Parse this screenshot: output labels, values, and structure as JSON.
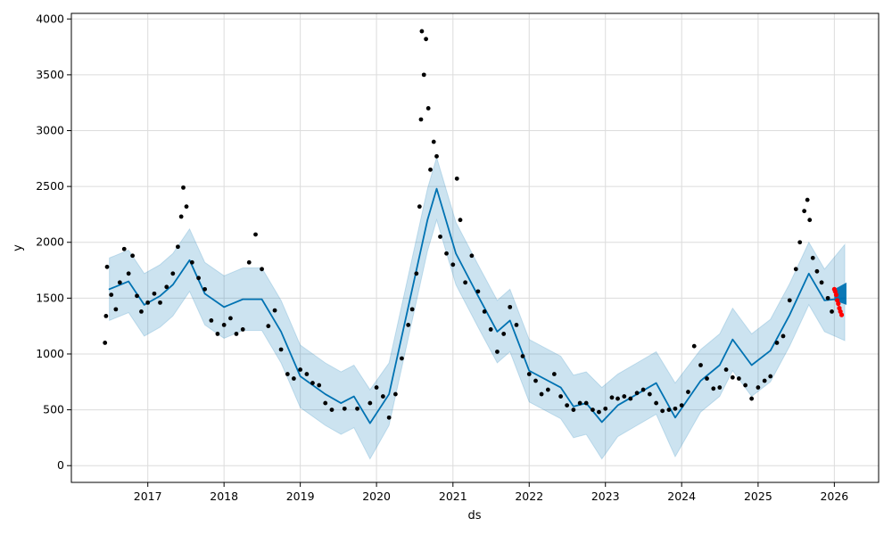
{
  "colors": {
    "background": "#ffffff",
    "actual_points": "#000000",
    "forecast_line": "#0072b2",
    "uncertainty_band": "#0072b2",
    "grid": "#dcdcdc",
    "recent_points": "#ff0000"
  },
  "chart_data": {
    "type": "line",
    "title": "",
    "xlabel": "ds",
    "ylabel": "y",
    "grid": true,
    "legend": "none",
    "x_axis": {
      "type": "date",
      "range": [
        "2016-01-01",
        "2026-08-01"
      ],
      "ticks": [
        "2017",
        "2018",
        "2019",
        "2020",
        "2021",
        "2022",
        "2023",
        "2024",
        "2025",
        "2026"
      ]
    },
    "y_axis": {
      "range": [
        -150,
        4050
      ],
      "ticks": [
        0,
        500,
        1000,
        1500,
        2000,
        2500,
        3000,
        3500,
        4000
      ]
    },
    "series": [
      {
        "name": "forecast",
        "kind": "line",
        "color": "#0072b2",
        "points": [
          [
            "2016-07-01",
            1580
          ],
          [
            "2016-10-01",
            1650
          ],
          [
            "2016-12-15",
            1440
          ],
          [
            "2017-03-01",
            1520
          ],
          [
            "2017-05-01",
            1620
          ],
          [
            "2017-07-20",
            1840
          ],
          [
            "2017-10-01",
            1540
          ],
          [
            "2018-01-01",
            1420
          ],
          [
            "2018-04-01",
            1490
          ],
          [
            "2018-07-01",
            1490
          ],
          [
            "2018-10-01",
            1200
          ],
          [
            "2019-01-01",
            800
          ],
          [
            "2019-05-01",
            640
          ],
          [
            "2019-07-15",
            560
          ],
          [
            "2019-09-15",
            620
          ],
          [
            "2019-12-01",
            380
          ],
          [
            "2020-03-01",
            640
          ],
          [
            "2020-06-01",
            1420
          ],
          [
            "2020-09-01",
            2200
          ],
          [
            "2020-10-15",
            2480
          ],
          [
            "2021-01-15",
            1900
          ],
          [
            "2021-05-01",
            1520
          ],
          [
            "2021-08-01",
            1200
          ],
          [
            "2021-10-01",
            1300
          ],
          [
            "2022-01-01",
            850
          ],
          [
            "2022-06-01",
            700
          ],
          [
            "2022-08-01",
            530
          ],
          [
            "2022-10-01",
            560
          ],
          [
            "2022-12-15",
            390
          ],
          [
            "2023-03-01",
            540
          ],
          [
            "2023-06-01",
            640
          ],
          [
            "2023-09-01",
            740
          ],
          [
            "2023-12-01",
            430
          ],
          [
            "2024-04-01",
            760
          ],
          [
            "2024-07-01",
            900
          ],
          [
            "2024-09-01",
            1130
          ],
          [
            "2024-12-01",
            900
          ],
          [
            "2025-03-01",
            1030
          ],
          [
            "2025-06-01",
            1350
          ],
          [
            "2025-09-01",
            1720
          ],
          [
            "2025-11-15",
            1480
          ],
          [
            "2026-02-20",
            1500
          ]
        ]
      },
      {
        "name": "forecast_interval_lower",
        "kind": "band_lower",
        "color": "#0072b2",
        "points": [
          [
            "2016-07-01",
            1300
          ],
          [
            "2016-10-01",
            1370
          ],
          [
            "2016-12-15",
            1160
          ],
          [
            "2017-03-01",
            1240
          ],
          [
            "2017-05-01",
            1340
          ],
          [
            "2017-07-20",
            1560
          ],
          [
            "2017-10-01",
            1260
          ],
          [
            "2018-01-01",
            1140
          ],
          [
            "2018-04-01",
            1210
          ],
          [
            "2018-07-01",
            1210
          ],
          [
            "2018-10-01",
            920
          ],
          [
            "2019-01-01",
            520
          ],
          [
            "2019-05-01",
            360
          ],
          [
            "2019-07-15",
            280
          ],
          [
            "2019-09-15",
            340
          ],
          [
            "2019-12-01",
            60
          ],
          [
            "2020-03-01",
            360
          ],
          [
            "2020-06-01",
            1140
          ],
          [
            "2020-09-01",
            1920
          ],
          [
            "2020-10-15",
            2200
          ],
          [
            "2021-01-15",
            1620
          ],
          [
            "2021-05-01",
            1240
          ],
          [
            "2021-08-01",
            920
          ],
          [
            "2021-10-01",
            1020
          ],
          [
            "2022-01-01",
            570
          ],
          [
            "2022-06-01",
            420
          ],
          [
            "2022-08-01",
            250
          ],
          [
            "2022-10-01",
            280
          ],
          [
            "2022-12-15",
            60
          ],
          [
            "2023-03-01",
            260
          ],
          [
            "2023-06-01",
            360
          ],
          [
            "2023-09-01",
            460
          ],
          [
            "2023-12-01",
            80
          ],
          [
            "2024-04-01",
            480
          ],
          [
            "2024-07-01",
            620
          ],
          [
            "2024-09-01",
            850
          ],
          [
            "2024-12-01",
            620
          ],
          [
            "2025-03-01",
            750
          ],
          [
            "2025-06-01",
            1070
          ],
          [
            "2025-09-01",
            1440
          ],
          [
            "2025-11-15",
            1200
          ],
          [
            "2026-02-20",
            1120
          ]
        ]
      },
      {
        "name": "forecast_interval_upper",
        "kind": "band_upper",
        "color": "#0072b2",
        "points": [
          [
            "2016-07-01",
            1860
          ],
          [
            "2016-10-01",
            1930
          ],
          [
            "2016-12-15",
            1720
          ],
          [
            "2017-03-01",
            1800
          ],
          [
            "2017-05-01",
            1900
          ],
          [
            "2017-07-20",
            2120
          ],
          [
            "2017-10-01",
            1820
          ],
          [
            "2018-01-01",
            1700
          ],
          [
            "2018-04-01",
            1770
          ],
          [
            "2018-07-01",
            1770
          ],
          [
            "2018-10-01",
            1480
          ],
          [
            "2019-01-01",
            1080
          ],
          [
            "2019-05-01",
            920
          ],
          [
            "2019-07-15",
            840
          ],
          [
            "2019-09-15",
            900
          ],
          [
            "2019-12-01",
            680
          ],
          [
            "2020-03-01",
            920
          ],
          [
            "2020-06-01",
            1700
          ],
          [
            "2020-09-01",
            2480
          ],
          [
            "2020-10-15",
            2760
          ],
          [
            "2021-01-15",
            2180
          ],
          [
            "2021-05-01",
            1800
          ],
          [
            "2021-08-01",
            1480
          ],
          [
            "2021-10-01",
            1580
          ],
          [
            "2022-01-01",
            1130
          ],
          [
            "2022-06-01",
            980
          ],
          [
            "2022-08-01",
            810
          ],
          [
            "2022-10-01",
            840
          ],
          [
            "2022-12-15",
            700
          ],
          [
            "2023-03-01",
            820
          ],
          [
            "2023-06-01",
            920
          ],
          [
            "2023-09-01",
            1020
          ],
          [
            "2023-12-01",
            740
          ],
          [
            "2024-04-01",
            1040
          ],
          [
            "2024-07-01",
            1180
          ],
          [
            "2024-09-01",
            1410
          ],
          [
            "2024-12-01",
            1180
          ],
          [
            "2025-03-01",
            1310
          ],
          [
            "2025-06-01",
            1630
          ],
          [
            "2025-09-01",
            2000
          ],
          [
            "2025-11-15",
            1760
          ],
          [
            "2026-02-20",
            1980
          ]
        ]
      },
      {
        "name": "observed",
        "kind": "scatter",
        "color": "#000000",
        "points": [
          [
            "2016-06-10",
            1100
          ],
          [
            "2016-06-15",
            1340
          ],
          [
            "2016-06-20",
            1780
          ],
          [
            "2016-07-10",
            1530
          ],
          [
            "2016-08-01",
            1400
          ],
          [
            "2016-08-20",
            1640
          ],
          [
            "2016-09-10",
            1940
          ],
          [
            "2016-10-01",
            1720
          ],
          [
            "2016-10-20",
            1880
          ],
          [
            "2016-11-10",
            1520
          ],
          [
            "2016-12-01",
            1380
          ],
          [
            "2017-01-01",
            1460
          ],
          [
            "2017-02-01",
            1540
          ],
          [
            "2017-03-01",
            1460
          ],
          [
            "2017-04-01",
            1600
          ],
          [
            "2017-05-01",
            1720
          ],
          [
            "2017-05-25",
            1960
          ],
          [
            "2017-06-10",
            2230
          ],
          [
            "2017-06-20",
            2490
          ],
          [
            "2017-07-05",
            2320
          ],
          [
            "2017-08-01",
            1820
          ],
          [
            "2017-09-01",
            1680
          ],
          [
            "2017-10-01",
            1580
          ],
          [
            "2017-11-01",
            1300
          ],
          [
            "2017-12-01",
            1180
          ],
          [
            "2018-01-01",
            1260
          ],
          [
            "2018-02-01",
            1320
          ],
          [
            "2018-03-01",
            1180
          ],
          [
            "2018-04-01",
            1220
          ],
          [
            "2018-05-01",
            1820
          ],
          [
            "2018-06-01",
            2070
          ],
          [
            "2018-07-01",
            1760
          ],
          [
            "2018-08-01",
            1250
          ],
          [
            "2018-09-01",
            1390
          ],
          [
            "2018-10-01",
            1040
          ],
          [
            "2018-11-01",
            820
          ],
          [
            "2018-12-01",
            780
          ],
          [
            "2019-01-01",
            860
          ],
          [
            "2019-02-01",
            820
          ],
          [
            "2019-03-01",
            740
          ],
          [
            "2019-04-01",
            720
          ],
          [
            "2019-05-01",
            560
          ],
          [
            "2019-06-01",
            500
          ],
          [
            "2019-08-01",
            510
          ],
          [
            "2019-10-01",
            510
          ],
          [
            "2019-12-01",
            560
          ],
          [
            "2020-01-01",
            700
          ],
          [
            "2020-02-01",
            620
          ],
          [
            "2020-03-01",
            430
          ],
          [
            "2020-04-01",
            640
          ],
          [
            "2020-05-01",
            960
          ],
          [
            "2020-06-01",
            1260
          ],
          [
            "2020-06-20",
            1400
          ],
          [
            "2020-07-10",
            1720
          ],
          [
            "2020-07-25",
            2320
          ],
          [
            "2020-08-01",
            3100
          ],
          [
            "2020-08-05",
            3890
          ],
          [
            "2020-08-15",
            3500
          ],
          [
            "2020-08-25",
            3820
          ],
          [
            "2020-09-05",
            3200
          ],
          [
            "2020-09-15",
            2650
          ],
          [
            "2020-10-01",
            2900
          ],
          [
            "2020-10-15",
            2770
          ],
          [
            "2020-11-01",
            2050
          ],
          [
            "2020-12-01",
            1900
          ],
          [
            "2021-01-01",
            1800
          ],
          [
            "2021-01-20",
            2570
          ],
          [
            "2021-02-05",
            2200
          ],
          [
            "2021-03-01",
            1640
          ],
          [
            "2021-04-01",
            1880
          ],
          [
            "2021-05-01",
            1560
          ],
          [
            "2021-06-01",
            1380
          ],
          [
            "2021-07-01",
            1220
          ],
          [
            "2021-08-01",
            1020
          ],
          [
            "2021-09-01",
            1180
          ],
          [
            "2021-10-01",
            1420
          ],
          [
            "2021-11-01",
            1260
          ],
          [
            "2021-12-01",
            980
          ],
          [
            "2022-01-01",
            820
          ],
          [
            "2022-02-01",
            760
          ],
          [
            "2022-03-01",
            640
          ],
          [
            "2022-04-01",
            680
          ],
          [
            "2022-05-01",
            820
          ],
          [
            "2022-06-01",
            620
          ],
          [
            "2022-07-01",
            540
          ],
          [
            "2022-08-01",
            500
          ],
          [
            "2022-09-01",
            560
          ],
          [
            "2022-10-01",
            560
          ],
          [
            "2022-11-01",
            500
          ],
          [
            "2022-12-01",
            480
          ],
          [
            "2023-01-01",
            510
          ],
          [
            "2023-02-01",
            610
          ],
          [
            "2023-03-01",
            600
          ],
          [
            "2023-04-01",
            620
          ],
          [
            "2023-05-01",
            600
          ],
          [
            "2023-06-01",
            650
          ],
          [
            "2023-07-01",
            680
          ],
          [
            "2023-08-01",
            640
          ],
          [
            "2023-09-01",
            560
          ],
          [
            "2023-10-01",
            490
          ],
          [
            "2023-11-01",
            500
          ],
          [
            "2023-12-01",
            510
          ],
          [
            "2024-01-01",
            540
          ],
          [
            "2024-02-01",
            660
          ],
          [
            "2024-03-01",
            1070
          ],
          [
            "2024-04-01",
            900
          ],
          [
            "2024-05-01",
            780
          ],
          [
            "2024-06-01",
            690
          ],
          [
            "2024-07-01",
            700
          ],
          [
            "2024-08-01",
            860
          ],
          [
            "2024-09-01",
            790
          ],
          [
            "2024-10-01",
            780
          ],
          [
            "2024-11-01",
            720
          ],
          [
            "2024-12-01",
            600
          ],
          [
            "2025-01-01",
            700
          ],
          [
            "2025-02-01",
            760
          ],
          [
            "2025-03-01",
            800
          ],
          [
            "2025-04-01",
            1100
          ],
          [
            "2025-05-01",
            1160
          ],
          [
            "2025-06-01",
            1480
          ],
          [
            "2025-07-01",
            1760
          ],
          [
            "2025-07-20",
            2000
          ],
          [
            "2025-08-10",
            2280
          ],
          [
            "2025-08-25",
            2380
          ],
          [
            "2025-09-05",
            2200
          ],
          [
            "2025-09-20",
            1860
          ],
          [
            "2025-10-10",
            1740
          ],
          [
            "2025-11-01",
            1640
          ],
          [
            "2025-12-01",
            1500
          ],
          [
            "2025-12-20",
            1380
          ]
        ]
      },
      {
        "name": "recent_observed",
        "kind": "scatter",
        "color": "#ff0000",
        "points": [
          [
            "2026-01-01",
            1580
          ],
          [
            "2026-01-05",
            1560
          ],
          [
            "2026-01-10",
            1530
          ],
          [
            "2026-01-15",
            1480
          ],
          [
            "2026-01-20",
            1450
          ],
          [
            "2026-01-25",
            1410
          ],
          [
            "2026-01-30",
            1380
          ],
          [
            "2026-02-05",
            1350
          ]
        ]
      },
      {
        "name": "future_forecast_band",
        "kind": "future_band",
        "color": "#0072b2",
        "points": [
          [
            "2026-01-01",
            1480,
            1580
          ],
          [
            "2026-02-28",
            1440,
            1640
          ]
        ]
      }
    ]
  }
}
